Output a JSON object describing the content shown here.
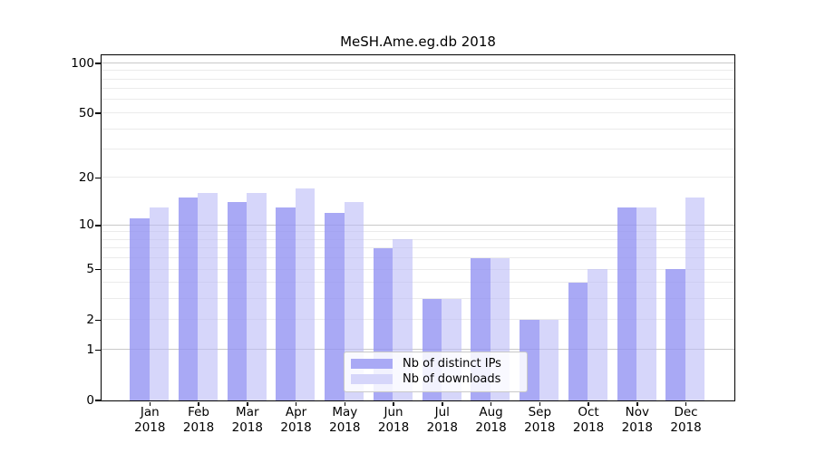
{
  "chart_data": {
    "type": "bar",
    "title": "MeSH.Ame.eg.db 2018",
    "categories": [
      {
        "month": "Jan",
        "year": "2018"
      },
      {
        "month": "Feb",
        "year": "2018"
      },
      {
        "month": "Mar",
        "year": "2018"
      },
      {
        "month": "Apr",
        "year": "2018"
      },
      {
        "month": "May",
        "year": "2018"
      },
      {
        "month": "Jun",
        "year": "2018"
      },
      {
        "month": "Jul",
        "year": "2018"
      },
      {
        "month": "Aug",
        "year": "2018"
      },
      {
        "month": "Sep",
        "year": "2018"
      },
      {
        "month": "Oct",
        "year": "2018"
      },
      {
        "month": "Nov",
        "year": "2018"
      },
      {
        "month": "Dec",
        "year": "2018"
      }
    ],
    "series": [
      {
        "key": "distinct-ips",
        "name": "Nb of distinct IPs",
        "color": "rgba(147,147,242,0.80)",
        "legend_color": "#a9a9f5",
        "values": [
          11,
          15,
          14,
          13,
          12,
          7,
          3,
          6,
          2,
          4,
          13,
          5
        ]
      },
      {
        "key": "downloads",
        "name": "Nb of downloads",
        "color": "rgba(187,187,247,0.60)",
        "legend_color": "#d6d6fa",
        "values": [
          13,
          16,
          16,
          17,
          14,
          8,
          3,
          6,
          2,
          5,
          13,
          15
        ]
      }
    ],
    "yscale": "log1p",
    "ylim": [
      0,
      100
    ],
    "yticks": [
      100,
      50,
      20,
      10,
      5,
      2,
      1,
      0
    ],
    "grid": {
      "minor": [
        2,
        3,
        4,
        5,
        6,
        7,
        8,
        9,
        20,
        30,
        40,
        50,
        60,
        70,
        80,
        90
      ],
      "major": [
        1,
        10,
        100
      ]
    },
    "legend_position": "lower center",
    "xlabel": "",
    "ylabel": ""
  },
  "colors": {
    "background": "#ffffff",
    "axis": "#000000",
    "grid_minor": "#ebebeb",
    "grid_major": "#c9c9c9",
    "legend_border": "#c9c9c9"
  }
}
